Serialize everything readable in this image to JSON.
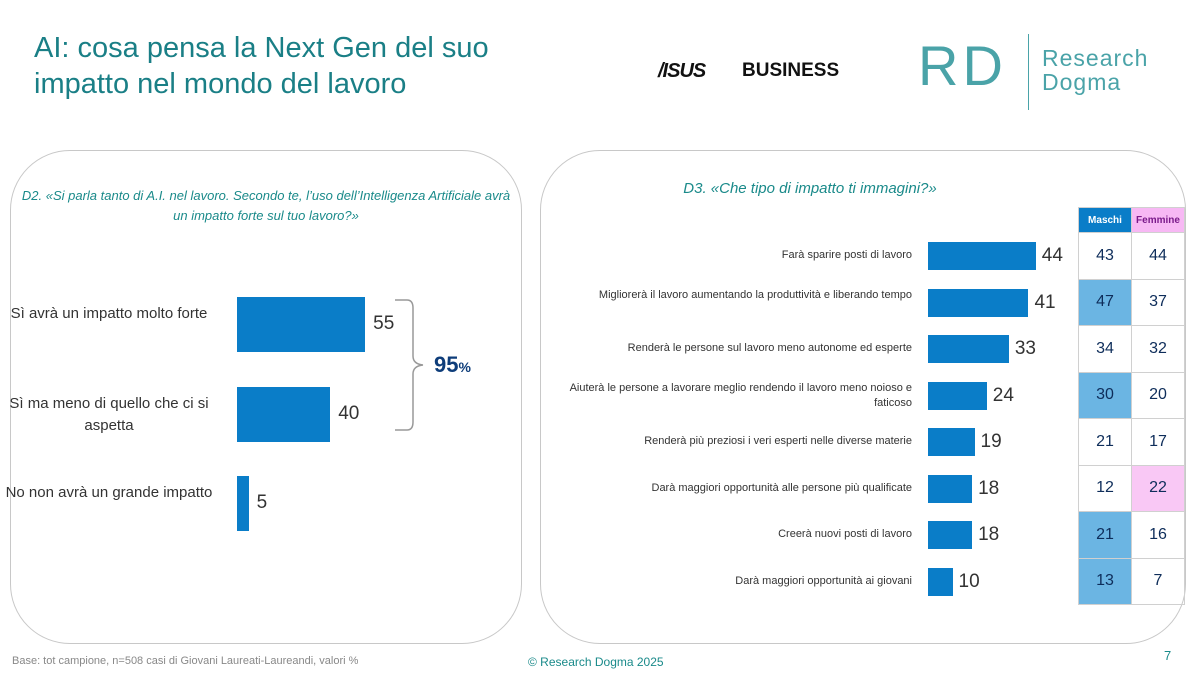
{
  "header": {
    "title": "AI: cosa pensa la Next Gen del suo impatto nel mondo del lavoro",
    "asus_logo": "/ISUS",
    "asus_business": "BUSINESS",
    "rd_logo": "RD",
    "rd_name_1": "Research",
    "rd_name_2": "Dogma"
  },
  "colors": {
    "title": "#1a7f86",
    "bar": "#0a7dc8",
    "highlight_male": "#6bb5e3",
    "highlight_female": "#f9c8f5"
  },
  "chart_data": [
    {
      "type": "bar",
      "orientation": "horizontal",
      "title": "D2. «Si parla tanto di A.I. nel lavoro. Secondo te, l’uso dell’Intelligenza Artificiale avrà un impatto forte sul tuo lavoro?»",
      "categories": [
        "Sì avrà un impatto molto forte",
        "Sì ma meno di quello che ci si aspetta",
        "No non avrà un grande impatto"
      ],
      "values": [
        55,
        40,
        5
      ],
      "annotation": {
        "value": "95",
        "unit": "%"
      },
      "xlim": [
        0,
        100
      ]
    },
    {
      "type": "bar",
      "orientation": "horizontal",
      "title": "D3. «Che tipo di impatto ti immagini?»",
      "categories": [
        "Farà sparire posti di lavoro",
        "Migliorerà il lavoro aumentando la produttività e liberando tempo",
        "Renderà le persone sul lavoro meno autonome ed esperte",
        "Aiuterà le persone a lavorare meglio rendendo il lavoro meno noioso e faticoso",
        "Renderà più preziosi i veri esperti nelle diverse materie",
        "Darà maggiori opportunità alle persone più qualificate",
        "Creerà nuovi posti di lavoro",
        "Darà maggiori opportunità ai giovani"
      ],
      "values": [
        44,
        41,
        33,
        24,
        19,
        18,
        18,
        10
      ],
      "xlim": [
        0,
        100
      ],
      "table": {
        "headers": [
          "Maschi",
          "Femmine"
        ],
        "rows": [
          [
            43,
            44
          ],
          [
            47,
            37
          ],
          [
            34,
            32
          ],
          [
            30,
            20
          ],
          [
            21,
            17
          ],
          [
            12,
            22
          ],
          [
            21,
            16
          ],
          [
            13,
            7
          ]
        ],
        "highlight": [
          [
            false,
            false
          ],
          [
            true,
            false
          ],
          [
            false,
            false
          ],
          [
            true,
            false
          ],
          [
            false,
            false
          ],
          [
            false,
            true
          ],
          [
            true,
            false
          ],
          [
            true,
            false
          ]
        ]
      }
    }
  ],
  "footer": {
    "base": "Base: tot campione, n=508 casi di Giovani Laureati-Laureandi, valori %",
    "copyright": "© Research Dogma 2025",
    "page": "7"
  }
}
